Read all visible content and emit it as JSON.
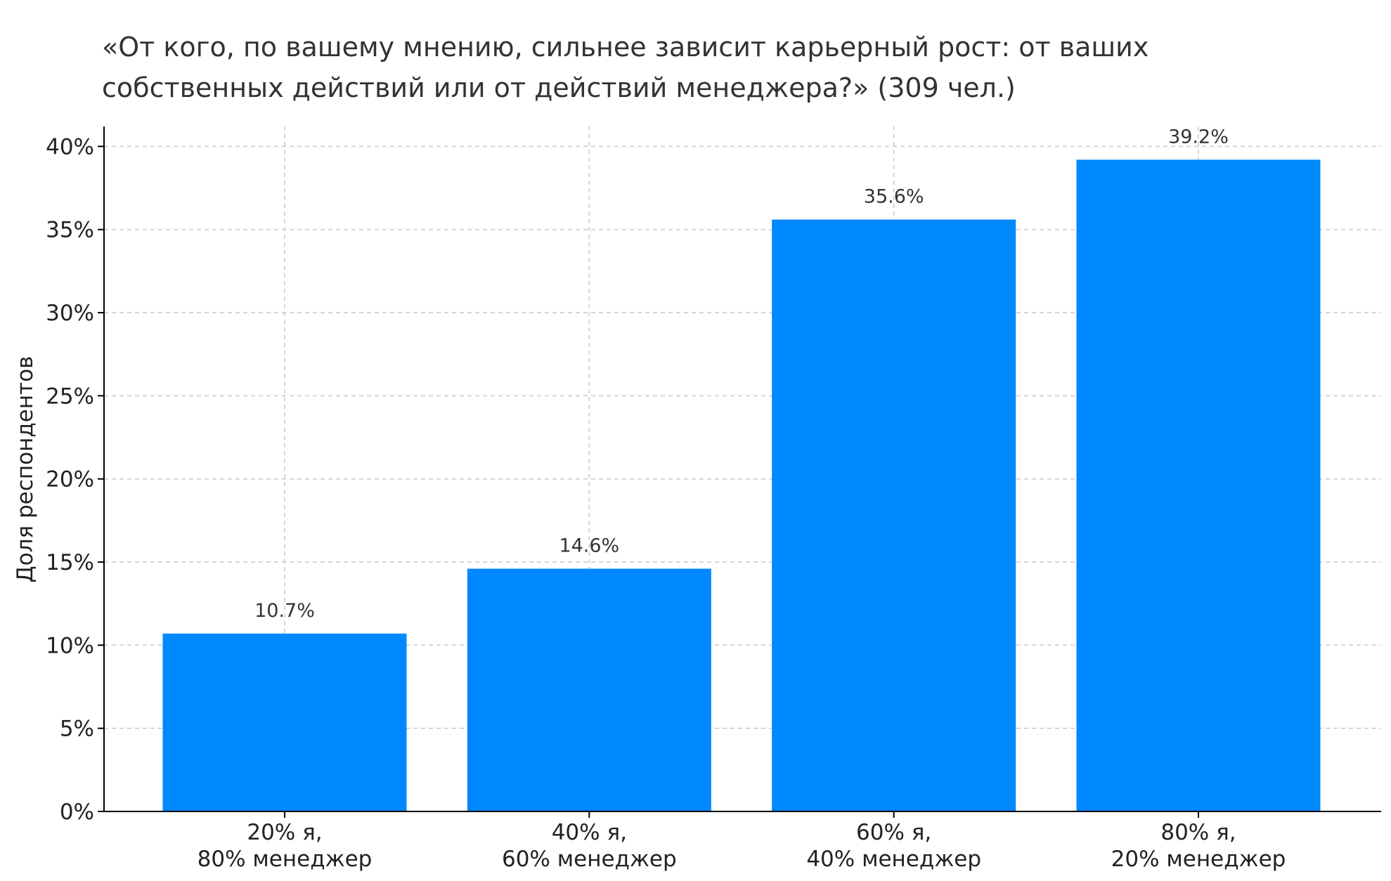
{
  "chart_data": {
    "type": "bar",
    "title_lines": [
      "«От кого, по вашему мнению, сильнее зависит карьерный рост: от ваших",
      "собственных действий или от действий менеджера?» (309 чел.)"
    ],
    "xlabel": "",
    "ylabel": "Доля респондентов",
    "categories": [
      [
        "20% я,",
        "80% менеджер"
      ],
      [
        "40% я,",
        "60% менеджер"
      ],
      [
        "60% я,",
        "40% менеджер"
      ],
      [
        "80% я,",
        "20% менеджер"
      ]
    ],
    "values": [
      10.7,
      14.6,
      35.6,
      39.2
    ],
    "data_labels": [
      "10.7%",
      "14.6%",
      "35.6%",
      "39.2%"
    ],
    "yticks": [
      0,
      5,
      10,
      15,
      20,
      25,
      30,
      35,
      40
    ],
    "ytick_labels": [
      "0%",
      "5%",
      "10%",
      "15%",
      "20%",
      "25%",
      "30%",
      "35%",
      "40%"
    ],
    "ylim": [
      0,
      41.2
    ],
    "grid": true,
    "bar_color": "#0088ff",
    "grid_color": "#c8c8c8",
    "axis_color": "#000000"
  }
}
